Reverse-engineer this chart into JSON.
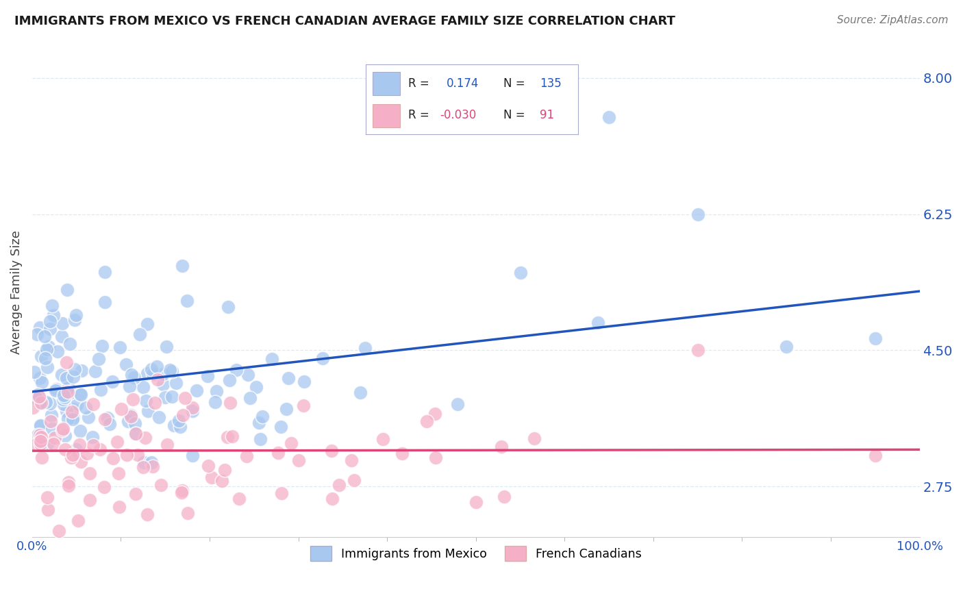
{
  "title": "IMMIGRANTS FROM MEXICO VS FRENCH CANADIAN AVERAGE FAMILY SIZE CORRELATION CHART",
  "source": "Source: ZipAtlas.com",
  "ylabel": "Average Family Size",
  "yticks": [
    2.75,
    4.5,
    6.25,
    8.0
  ],
  "ymin": 2.1,
  "ymax": 8.4,
  "xmin": 0.0,
  "xmax": 1.0,
  "blue_R": 0.174,
  "blue_N": 135,
  "pink_R": -0.03,
  "pink_N": 91,
  "blue_color": "#a8c8f0",
  "pink_color": "#f5b0c8",
  "blue_line_color": "#2255bb",
  "pink_line_color": "#dd4477",
  "legend_label_blue": "Immigrants from Mexico",
  "legend_label_pink": "French Canadians",
  "background_color": "#ffffff",
  "grid_color": "#dce8f5",
  "title_color": "#1a1a1a",
  "ytick_color": "#2255bb",
  "xtick_color": "#2255bb"
}
